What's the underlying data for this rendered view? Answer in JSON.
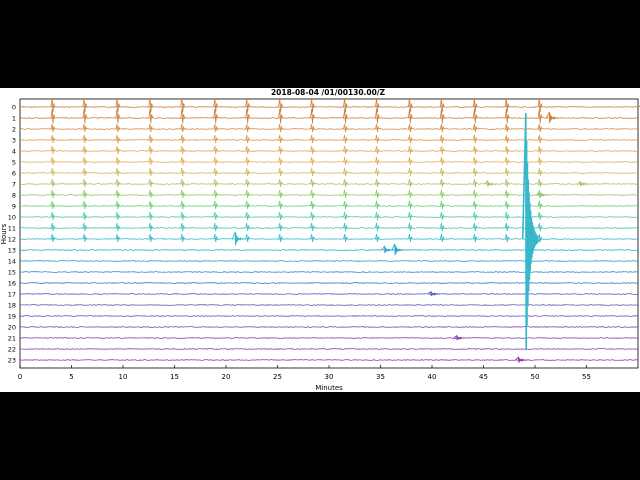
{
  "chart_data": {
    "type": "line",
    "title": "2018-08-04 /01/00130.00/Z",
    "xlabel": "Minutes",
    "ylabel": "Hours",
    "xlim": [
      0,
      60
    ],
    "x_ticks": [
      0,
      5,
      10,
      15,
      20,
      25,
      30,
      35,
      40,
      45,
      50,
      55
    ],
    "hours": [
      "0",
      "1",
      "2",
      "3",
      "4",
      "5",
      "6",
      "7",
      "8",
      "9",
      "10",
      "11",
      "12",
      "13",
      "14",
      "15",
      "16",
      "17",
      "18",
      "19",
      "20",
      "21",
      "22",
      "23"
    ],
    "hour_colors": [
      "#c8803a",
      "#c8803a",
      "#d48c3c",
      "#d89a44",
      "#dca84c",
      "#d8b454",
      "#c8bc5c",
      "#b0c060",
      "#8ec868",
      "#6ccc78",
      "#4fcc96",
      "#3ec4b0",
      "#36b8c8",
      "#2aa8d0",
      "#2a98cc",
      "#3086c8",
      "#3a72c4",
      "#4a62c0",
      "#5a58bc",
      "#6a4cba",
      "#7844b8",
      "#8240b4",
      "#8a3cb2",
      "#9038b0"
    ],
    "events": [
      {
        "hour": 0,
        "minute": 60.5,
        "amp": 6
      },
      {
        "hour": 1,
        "minute": 51.5,
        "amp": 10
      },
      {
        "hour": 7,
        "minute": 45.5,
        "amp": 5
      },
      {
        "hour": 7,
        "minute": 54.5,
        "amp": 4
      },
      {
        "hour": 8,
        "minute": 50.5,
        "amp": 4
      },
      {
        "hour": 12,
        "minute": 21.0,
        "amp": 12
      },
      {
        "hour": 12,
        "minute": 49.2,
        "amp": 140
      },
      {
        "hour": 13,
        "minute": 35.5,
        "amp": 6
      },
      {
        "hour": 13,
        "minute": 36.5,
        "amp": 10
      },
      {
        "hour": 17,
        "minute": 40.0,
        "amp": 4
      },
      {
        "hour": 21,
        "minute": 42.5,
        "amp": 4
      },
      {
        "hour": 23,
        "minute": 48.5,
        "amp": 5
      }
    ],
    "spikes_minutes": [
      3.2,
      6.3,
      9.5,
      12.7,
      15.8,
      19.0,
      22.1,
      25.3,
      28.4,
      31.6,
      34.7,
      37.9,
      41.0,
      44.2,
      47.3,
      50.5
    ],
    "spike_hours_range": [
      0,
      12
    ],
    "grid": false
  }
}
